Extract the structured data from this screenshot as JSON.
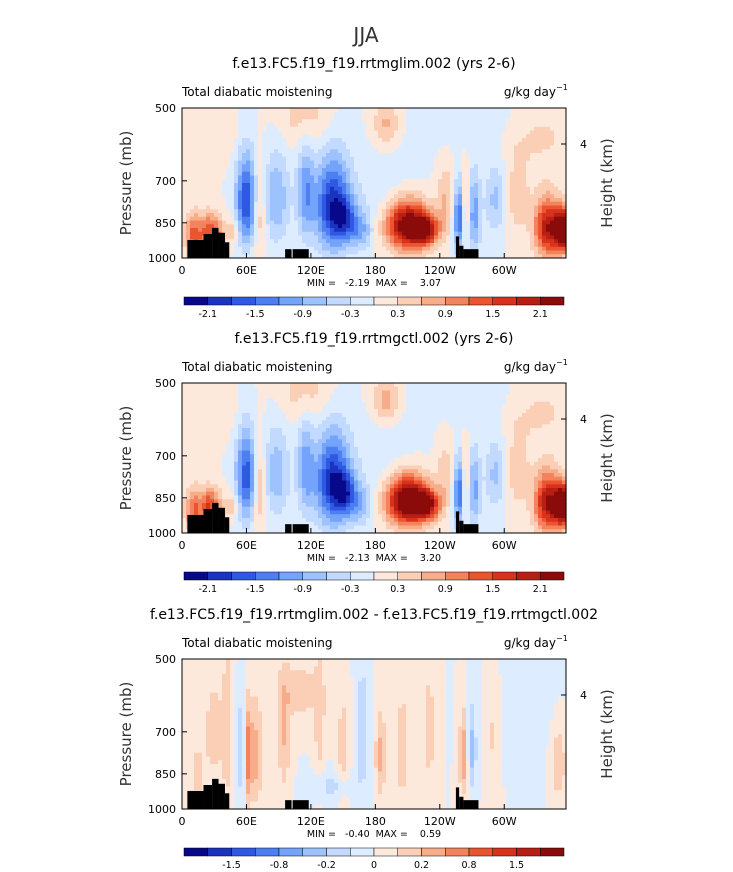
{
  "figure_title": "JJA",
  "chart_data": [
    {
      "type": "heatmap",
      "title": "f.e13.FC5.f19_f19.rrtmglim.002 (yrs 2-6)",
      "left_label": "Total diabatic moistening",
      "units_label": "g/kg day",
      "units_exp": "−1",
      "ylabel": "Pressure (mb)",
      "right_label": "Height (km)",
      "right_ticks": [
        "4"
      ],
      "yticks": [
        "500",
        "700",
        "850",
        "1000"
      ],
      "xticks": [
        "0",
        "60E",
        "120E",
        "180",
        "120W",
        "60W"
      ],
      "minmax_text": "MIN =   -2.19  MAX =    3.07",
      "palette": [
        "#08088a",
        "#1a34c0",
        "#2f59e4",
        "#4d7ff2",
        "#74a3fb",
        "#9dc2fd",
        "#c2daff",
        "#deecff",
        "#fde9dc",
        "#fbcfb6",
        "#f8ad8a",
        "#f2835c",
        "#ea5530",
        "#d8321c",
        "#b71e14",
        "#8b0a0a"
      ],
      "colorbar_labels": [
        "-2.1",
        "-1.5",
        "-0.9",
        "-0.3",
        "0.3",
        "0.9",
        "1.5",
        "2.1"
      ],
      "levels": [
        -2.1,
        -1.8,
        -1.5,
        -1.2,
        -0.9,
        -0.6,
        -0.3,
        0,
        0.3,
        0.6,
        0.9,
        1.2,
        1.5,
        1.8,
        2.1
      ],
      "features": [
        [
          12,
          900,
          9,
          90,
          1.4
        ],
        [
          25,
          880,
          6,
          70,
          1.2
        ],
        [
          33,
          900,
          6,
          80,
          1.0
        ],
        [
          47,
          880,
          6,
          60,
          0.7
        ],
        [
          60,
          770,
          10,
          160,
          -1.8
        ],
        [
          72,
          800,
          6,
          160,
          0.8
        ],
        [
          88,
          760,
          12,
          160,
          -0.9
        ],
        [
          115,
          740,
          8,
          160,
          -1.1
        ],
        [
          140,
          790,
          16,
          170,
          -2.0
        ],
        [
          152,
          830,
          10,
          80,
          -1.0
        ],
        [
          166,
          880,
          12,
          80,
          -0.9
        ],
        [
          115,
          520,
          25,
          80,
          0.5
        ],
        [
          190,
          540,
          12,
          60,
          0.7
        ],
        [
          210,
          860,
          20,
          100,
          2.6
        ],
        [
          228,
          880,
          12,
          60,
          1.6
        ],
        [
          245,
          760,
          8,
          120,
          0.6
        ],
        [
          258,
          830,
          5,
          130,
          -1.6
        ],
        [
          264,
          800,
          4,
          140,
          0.8
        ],
        [
          272,
          820,
          6,
          150,
          -1.1
        ],
        [
          292,
          760,
          10,
          130,
          -0.7
        ],
        [
          312,
          760,
          12,
          130,
          0.5
        ],
        [
          340,
          870,
          12,
          120,
          2.0
        ],
        [
          355,
          880,
          8,
          80,
          3.0
        ],
        [
          330,
          560,
          40,
          100,
          0.4
        ],
        [
          280,
          520,
          50,
          80,
          -0.3
        ],
        [
          30,
          560,
          25,
          80,
          0.3
        ],
        [
          190,
          720,
          35,
          140,
          -0.25
        ]
      ]
    },
    {
      "type": "heatmap",
      "title": "f.e13.FC5.f19_f19.rrtmgctl.002 (yrs 2-6)",
      "left_label": "Total diabatic moistening",
      "units_label": "g/kg day",
      "units_exp": "−1",
      "ylabel": "Pressure (mb)",
      "right_label": "Height (km)",
      "right_ticks": [
        "4"
      ],
      "yticks": [
        "500",
        "700",
        "850",
        "1000"
      ],
      "xticks": [
        "0",
        "60E",
        "120E",
        "180",
        "120W",
        "60W"
      ],
      "minmax_text": "MIN =   -2.13  MAX =    3.20",
      "palette": [
        "#08088a",
        "#1a34c0",
        "#2f59e4",
        "#4d7ff2",
        "#74a3fb",
        "#9dc2fd",
        "#c2daff",
        "#deecff",
        "#fde9dc",
        "#fbcfb6",
        "#f8ad8a",
        "#f2835c",
        "#ea5530",
        "#d8321c",
        "#b71e14",
        "#8b0a0a"
      ],
      "colorbar_labels": [
        "-2.1",
        "-1.5",
        "-0.9",
        "-0.3",
        "0.3",
        "0.9",
        "1.5",
        "2.1"
      ],
      "levels": [
        -2.1,
        -1.8,
        -1.5,
        -1.2,
        -0.9,
        -0.6,
        -0.3,
        0,
        0.3,
        0.6,
        0.9,
        1.2,
        1.5,
        1.8,
        2.1
      ],
      "features": [
        [
          12,
          900,
          9,
          90,
          1.3
        ],
        [
          25,
          880,
          6,
          70,
          1.3
        ],
        [
          33,
          900,
          6,
          80,
          0.9
        ],
        [
          47,
          880,
          6,
          60,
          0.6
        ],
        [
          60,
          770,
          10,
          160,
          -1.7
        ],
        [
          72,
          800,
          6,
          160,
          0.9
        ],
        [
          88,
          760,
          12,
          160,
          -0.8
        ],
        [
          115,
          740,
          8,
          160,
          -1.0
        ],
        [
          140,
          790,
          16,
          170,
          -2.0
        ],
        [
          152,
          830,
          10,
          80,
          -1.1
        ],
        [
          166,
          880,
          12,
          80,
          -0.8
        ],
        [
          115,
          520,
          25,
          80,
          0.5
        ],
        [
          190,
          540,
          12,
          60,
          0.8
        ],
        [
          210,
          860,
          20,
          100,
          2.8
        ],
        [
          228,
          880,
          12,
          60,
          1.7
        ],
        [
          245,
          760,
          8,
          120,
          0.5
        ],
        [
          258,
          830,
          5,
          130,
          -1.6
        ],
        [
          264,
          800,
          4,
          140,
          0.7
        ],
        [
          272,
          820,
          6,
          150,
          -1.0
        ],
        [
          292,
          760,
          10,
          130,
          -0.7
        ],
        [
          312,
          760,
          12,
          130,
          0.5
        ],
        [
          340,
          870,
          12,
          120,
          2.1
        ],
        [
          355,
          880,
          8,
          80,
          3.1
        ],
        [
          330,
          560,
          40,
          100,
          0.4
        ],
        [
          280,
          520,
          50,
          80,
          -0.3
        ],
        [
          30,
          560,
          25,
          80,
          0.3
        ],
        [
          190,
          720,
          35,
          140,
          -0.25
        ]
      ]
    },
    {
      "type": "heatmap",
      "title": "f.e13.FC5.f19_f19.rrtmglim.002 - f.e13.FC5.f19_f19.rrtmgctl.002",
      "left_label": "Total diabatic moistening",
      "units_label": "g/kg day",
      "units_exp": "−1",
      "ylabel": "Pressure (mb)",
      "right_label": "Height (km)",
      "right_ticks": [
        "4"
      ],
      "yticks": [
        "500",
        "700",
        "850",
        "1000"
      ],
      "xticks": [
        "0",
        "60E",
        "120E",
        "180",
        "120W",
        "60W"
      ],
      "minmax_text": "MIN =   -0.40  MAX =    0.59",
      "palette": [
        "#08088a",
        "#1a34c0",
        "#2f59e4",
        "#4d7ff2",
        "#74a3fb",
        "#9dc2fd",
        "#c2daff",
        "#deecff",
        "#fde9dc",
        "#fbcfb6",
        "#f8ad8a",
        "#f2835c",
        "#ea5530",
        "#d8321c",
        "#b71e14",
        "#8b0a0a"
      ],
      "colorbar_labels": [
        "-1.5",
        "-0.8",
        "-0.2",
        "0",
        "0.2",
        "0.8",
        "1.5"
      ],
      "levels": [
        -0.5,
        -0.4,
        -0.3,
        -0.2,
        -0.15,
        -0.1,
        -0.05,
        0,
        0.05,
        0.1,
        0.15,
        0.2,
        0.3,
        0.4,
        0.5
      ],
      "features": [
        [
          62,
          780,
          4,
          180,
          0.22
        ],
        [
          56,
          760,
          4,
          180,
          -0.12
        ],
        [
          70,
          780,
          4,
          200,
          0.12
        ],
        [
          95,
          720,
          6,
          200,
          0.1
        ],
        [
          128,
          680,
          5,
          200,
          0.08
        ],
        [
          150,
          760,
          6,
          200,
          0.08
        ],
        [
          168,
          700,
          6,
          200,
          -0.1
        ],
        [
          185,
          780,
          5,
          160,
          0.12
        ],
        [
          205,
          760,
          6,
          200,
          0.09
        ],
        [
          230,
          700,
          6,
          200,
          0.08
        ],
        [
          262,
          780,
          4,
          150,
          0.15
        ],
        [
          270,
          760,
          4,
          150,
          -0.12
        ],
        [
          290,
          700,
          8,
          200,
          0.07
        ],
        [
          30,
          700,
          12,
          200,
          0.07
        ],
        [
          110,
          580,
          20,
          80,
          0.08
        ],
        [
          320,
          640,
          30,
          200,
          -0.05
        ],
        [
          350,
          800,
          8,
          150,
          0.1
        ],
        [
          14,
          850,
          6,
          100,
          0.08
        ],
        [
          42,
          700,
          4,
          250,
          0.08
        ],
        [
          140,
          900,
          20,
          60,
          -0.07
        ]
      ]
    }
  ]
}
